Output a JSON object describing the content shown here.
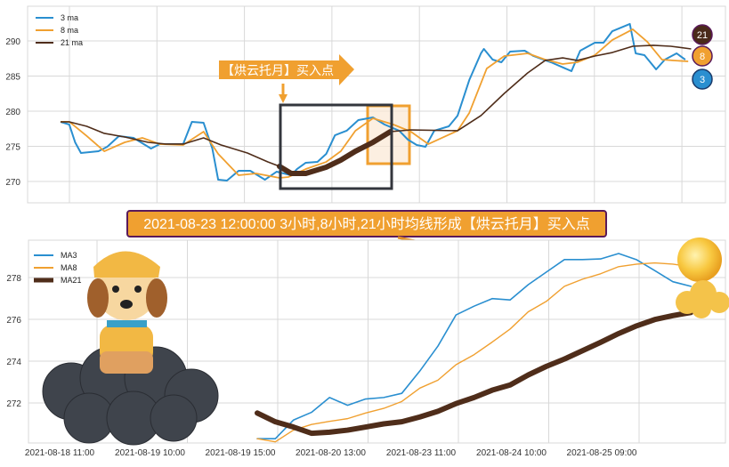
{
  "colors": {
    "ma3": "#2a8fd0",
    "ma8": "#f0a030",
    "ma21": "#4f2d1a",
    "annotation": "#f0a030",
    "banner_border": "#5a1a5a",
    "box": "#33363d"
  },
  "annotations": {
    "arrow_label": "【烘云托月】买入点",
    "banner": "2021-08-23 12:00:00 3小时,8小时,21小时均线形成【烘云托月】买入点",
    "badges": [
      "21",
      "8",
      "3"
    ]
  },
  "chart_data": [
    {
      "type": "line",
      "title": "",
      "legend_position": "top-left",
      "grid": true,
      "ylim": [
        267,
        295
      ],
      "yticks": [
        270,
        275,
        280,
        285,
        290
      ],
      "series": [
        {
          "name": "3 ma",
          "color": "#2a8fd0",
          "points": [
            [
              0,
              278.48
            ],
            [
              3,
              278.1
            ],
            [
              5,
              275.57
            ],
            [
              7,
              274.05
            ],
            [
              13,
              274.3
            ],
            [
              16,
              274.94
            ],
            [
              20,
              276.46
            ],
            [
              25,
              276.2
            ],
            [
              31,
              274.68
            ],
            [
              34,
              275.32
            ],
            [
              42,
              275.32
            ],
            [
              45,
              278.48
            ],
            [
              49,
              278.35
            ],
            [
              52,
              274.68
            ],
            [
              54,
              270.25
            ],
            [
              57,
              270.13
            ],
            [
              61,
              271.52
            ],
            [
              65,
              271.52
            ],
            [
              70,
              270.25
            ],
            [
              74,
              271.39
            ],
            [
              79,
              270.89
            ],
            [
              81,
              271.77
            ],
            [
              84,
              272.66
            ],
            [
              88,
              272.78
            ],
            [
              91,
              273.92
            ],
            [
              94,
              276.58
            ],
            [
              98,
              277.22
            ],
            [
              102,
              278.73
            ],
            [
              107,
              279.11
            ],
            [
              111,
              278.1
            ],
            [
              116,
              277.22
            ],
            [
              119,
              275.95
            ],
            [
              122,
              275.19
            ],
            [
              125,
              274.94
            ],
            [
              128,
              277.22
            ],
            [
              133,
              277.85
            ],
            [
              136,
              279.37
            ],
            [
              140,
              284.43
            ],
            [
              144,
              288.23
            ],
            [
              145,
              288.86
            ],
            [
              148,
              287.34
            ],
            [
              151,
              286.96
            ],
            [
              154,
              288.48
            ],
            [
              159,
              288.61
            ],
            [
              162,
              287.85
            ],
            [
              168,
              286.96
            ],
            [
              175,
              285.7
            ],
            [
              178,
              288.61
            ],
            [
              183,
              289.75
            ],
            [
              186,
              289.75
            ],
            [
              189,
              291.39
            ],
            [
              195,
              292.41
            ],
            [
              197,
              288.23
            ],
            [
              200,
              287.97
            ],
            [
              204,
              285.95
            ],
            [
              207,
              287.34
            ],
            [
              211,
              288.23
            ],
            [
              214,
              287.34
            ]
          ]
        },
        {
          "name": "8 ma",
          "color": "#f0a030",
          "points": [
            [
              0,
              278.5
            ],
            [
              3,
              278.5
            ],
            [
              9,
              276.46
            ],
            [
              15,
              274.3
            ],
            [
              22,
              275.57
            ],
            [
              28,
              276.2
            ],
            [
              34,
              275.32
            ],
            [
              42,
              275.19
            ],
            [
              49,
              277.09
            ],
            [
              54,
              273.92
            ],
            [
              61,
              270.89
            ],
            [
              67,
              271.14
            ],
            [
              75,
              270.51
            ],
            [
              78,
              270.63
            ],
            [
              84,
              271.77
            ],
            [
              91,
              272.78
            ],
            [
              96,
              274.3
            ],
            [
              101,
              277.22
            ],
            [
              107,
              278.99
            ],
            [
              114,
              278.1
            ],
            [
              120,
              277.09
            ],
            [
              126,
              275.32
            ],
            [
              132,
              276.46
            ],
            [
              136,
              277.22
            ],
            [
              140,
              279.75
            ],
            [
              146,
              286.08
            ],
            [
              152,
              287.85
            ],
            [
              160,
              288.23
            ],
            [
              166,
              287.34
            ],
            [
              172,
              286.71
            ],
            [
              177,
              286.96
            ],
            [
              183,
              287.97
            ],
            [
              189,
              290.13
            ],
            [
              196,
              291.65
            ],
            [
              201,
              289.87
            ],
            [
              206,
              287.34
            ],
            [
              210,
              287.22
            ],
            [
              215,
              287.09
            ]
          ]
        },
        {
          "name": "21 ma",
          "color": "#4f2d1a",
          "points": [
            [
              0,
              278.48
            ],
            [
              3,
              278.48
            ],
            [
              9,
              277.85
            ],
            [
              15,
              276.84
            ],
            [
              22,
              276.33
            ],
            [
              30,
              275.57
            ],
            [
              36,
              275.32
            ],
            [
              42,
              275.32
            ],
            [
              49,
              276.2
            ],
            [
              55,
              275.19
            ],
            [
              64,
              274.05
            ],
            [
              71,
              272.78
            ],
            [
              75,
              272.15
            ],
            [
              79,
              271.14
            ],
            [
              84,
              271.14
            ],
            [
              91,
              272.03
            ],
            [
              96,
              273.04
            ],
            [
              101,
              274.3
            ],
            [
              107,
              275.57
            ],
            [
              113,
              277.09
            ],
            [
              120,
              277.34
            ],
            [
              136,
              277.22
            ],
            [
              144,
              279.37
            ],
            [
              152,
              282.53
            ],
            [
              160,
              285.44
            ],
            [
              166,
              287.22
            ],
            [
              172,
              287.59
            ],
            [
              177,
              287.22
            ],
            [
              183,
              287.85
            ],
            [
              189,
              288.35
            ],
            [
              196,
              289.24
            ],
            [
              203,
              289.37
            ],
            [
              209,
              289.24
            ],
            [
              216,
              288.86
            ]
          ]
        }
      ]
    },
    {
      "type": "line",
      "title": "",
      "legend_position": "top-left",
      "grid": true,
      "ylim": [
        270.1,
        279.8
      ],
      "yticks": [
        272,
        274,
        276,
        278
      ],
      "xtick_labels": [
        "2021-08-18 11:00",
        "2021-08-19 10:00",
        "2021-08-19 15:00",
        "2021-08-20 13:00",
        "2021-08-23 11:00",
        "2021-08-24 10:00",
        "2021-08-25 09:00"
      ],
      "series": [
        {
          "name": "MA3",
          "color": "#2a8fd0",
          "values": [
            270.29,
            270.29,
            271.18,
            271.55,
            272.26,
            271.89,
            272.19,
            272.26,
            272.46,
            273.53,
            274.72,
            276.21,
            276.63,
            276.99,
            276.93,
            277.66,
            278.26,
            278.86,
            278.86,
            278.89,
            279.15,
            278.85,
            278.33,
            277.8,
            277.58
          ]
        },
        {
          "name": "MA8",
          "color": "#f0a030",
          "values": [
            270.29,
            270.14,
            270.7,
            270.97,
            271.12,
            271.25,
            271.52,
            271.74,
            272.07,
            272.71,
            273.09,
            273.83,
            274.31,
            274.91,
            275.54,
            276.36,
            276.86,
            277.58,
            277.92,
            278.18,
            278.52,
            278.64,
            278.7,
            278.64,
            278.52
          ]
        },
        {
          "name": "MA21",
          "color": "#4f2d1a",
          "values": [
            271.52,
            271.1,
            270.85,
            270.55,
            270.6,
            270.7,
            270.85,
            271.0,
            271.1,
            271.33,
            271.6,
            271.97,
            272.26,
            272.61,
            272.86,
            273.34,
            273.75,
            274.1,
            274.5,
            274.9,
            275.32,
            275.69,
            275.99,
            276.18,
            276.33
          ]
        }
      ]
    }
  ]
}
